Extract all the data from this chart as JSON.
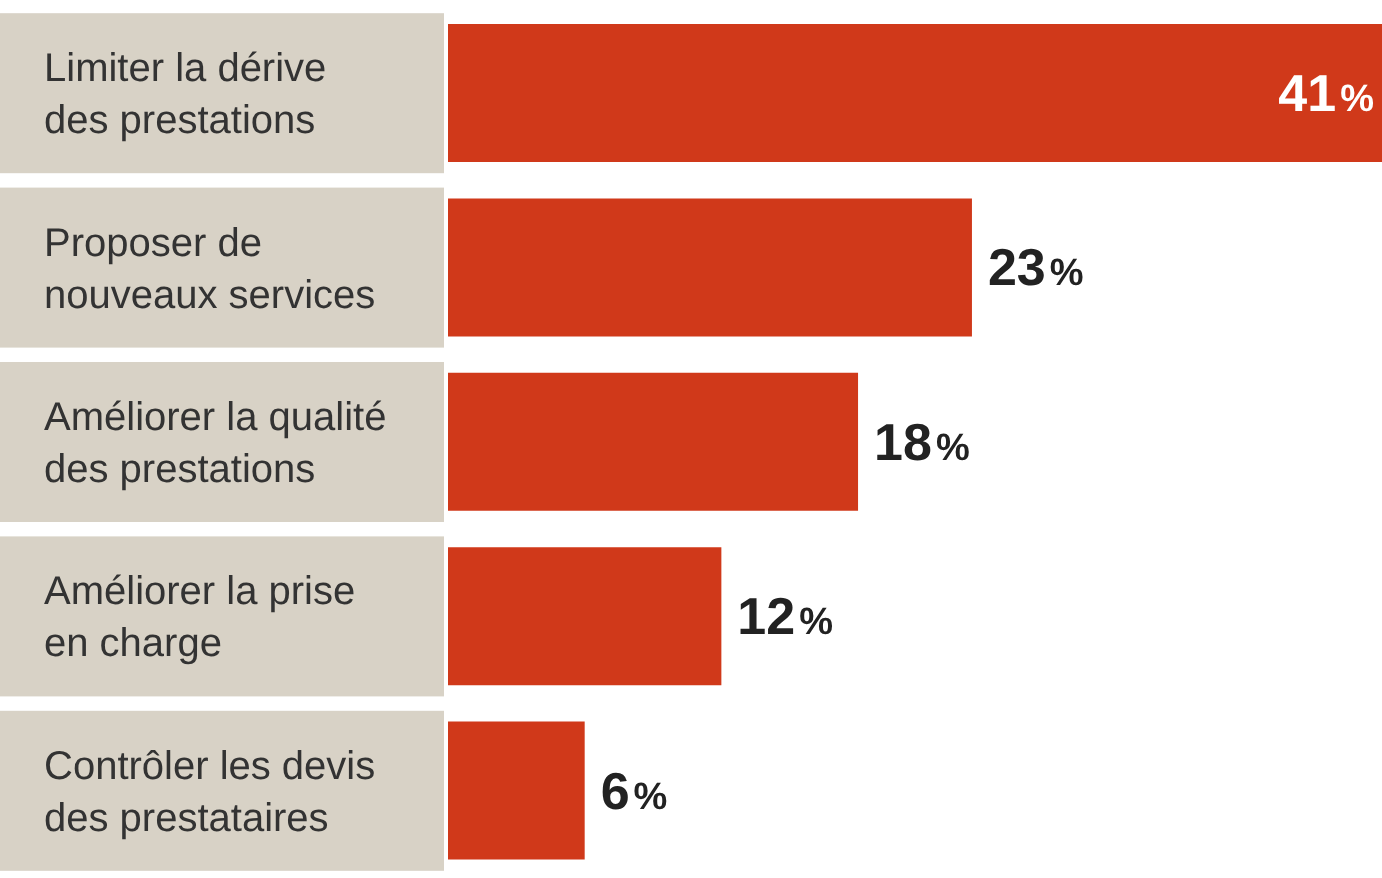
{
  "chart_data": {
    "type": "bar",
    "orientation": "horizontal",
    "categories": [
      "Limiter la dérive\ndes prestations",
      "Proposer de\nnouveaux services",
      "Améliorer la qualité\ndes prestations",
      "Améliorer la prise\nen charge",
      "Contrôler les devis\ndes prestataires"
    ],
    "values": [
      41,
      23,
      18,
      12,
      6
    ],
    "color": "#d0391a",
    "value_labels": [
      "41%",
      "23%",
      "18%",
      "12%",
      "6%"
    ]
  }
}
